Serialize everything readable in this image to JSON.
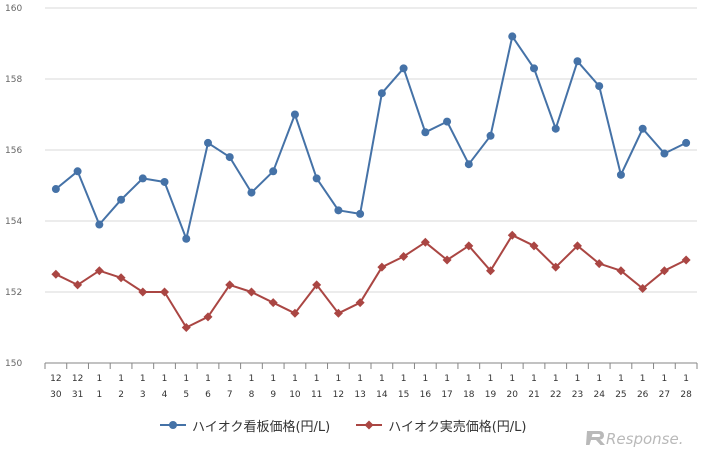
{
  "chart_data": {
    "type": "line",
    "ylim": [
      150,
      160
    ],
    "yticks": [
      "150",
      "152",
      "154",
      "156",
      "158",
      "160"
    ],
    "categories": [
      {
        "month": "12",
        "day": "30"
      },
      {
        "month": "12",
        "day": "31"
      },
      {
        "month": "1",
        "day": "1"
      },
      {
        "month": "1",
        "day": "2"
      },
      {
        "month": "1",
        "day": "3"
      },
      {
        "month": "1",
        "day": "4"
      },
      {
        "month": "1",
        "day": "5"
      },
      {
        "month": "1",
        "day": "6"
      },
      {
        "month": "1",
        "day": "7"
      },
      {
        "month": "1",
        "day": "8"
      },
      {
        "month": "1",
        "day": "9"
      },
      {
        "month": "1",
        "day": "10"
      },
      {
        "month": "1",
        "day": "11"
      },
      {
        "month": "1",
        "day": "12"
      },
      {
        "month": "1",
        "day": "13"
      },
      {
        "month": "1",
        "day": "14"
      },
      {
        "month": "1",
        "day": "15"
      },
      {
        "month": "1",
        "day": "16"
      },
      {
        "month": "1",
        "day": "17"
      },
      {
        "month": "1",
        "day": "18"
      },
      {
        "month": "1",
        "day": "19"
      },
      {
        "month": "1",
        "day": "20"
      },
      {
        "month": "1",
        "day": "21"
      },
      {
        "month": "1",
        "day": "22"
      },
      {
        "month": "1",
        "day": "23"
      },
      {
        "month": "1",
        "day": "24"
      },
      {
        "month": "1",
        "day": "25"
      },
      {
        "month": "1",
        "day": "26"
      },
      {
        "month": "1",
        "day": "27"
      },
      {
        "month": "1",
        "day": "28"
      }
    ],
    "series": [
      {
        "name": "ハイオク看板価格(円/L)",
        "color": "#4572A7",
        "marker": "circle",
        "values": [
          154.9,
          155.4,
          153.9,
          154.6,
          155.2,
          155.1,
          153.5,
          156.2,
          155.8,
          154.8,
          155.4,
          157.0,
          155.2,
          154.3,
          154.2,
          157.6,
          158.3,
          156.5,
          156.8,
          155.6,
          156.4,
          159.2,
          158.3,
          156.6,
          158.5,
          157.8,
          155.3,
          156.6,
          155.9,
          156.2
        ]
      },
      {
        "name": "ハイオク実売価格(円/L)",
        "color": "#AA4643",
        "marker": "diamond",
        "values": [
          152.5,
          152.2,
          152.6,
          152.4,
          152.0,
          152.0,
          151.0,
          151.3,
          152.2,
          152.0,
          151.7,
          151.4,
          152.2,
          151.4,
          151.7,
          152.7,
          153.0,
          153.4,
          152.9,
          153.3,
          152.6,
          153.6,
          153.3,
          152.7,
          153.3,
          152.8,
          152.6,
          152.1,
          152.6,
          152.9
        ]
      }
    ],
    "grid": true,
    "legend": "bottom",
    "colors": {
      "grid": "#d9d9d9",
      "axis": "#868686",
      "tick_text": "#666666",
      "logo": "#b9b9b9"
    }
  },
  "branding": {
    "logo_text": "Response."
  }
}
